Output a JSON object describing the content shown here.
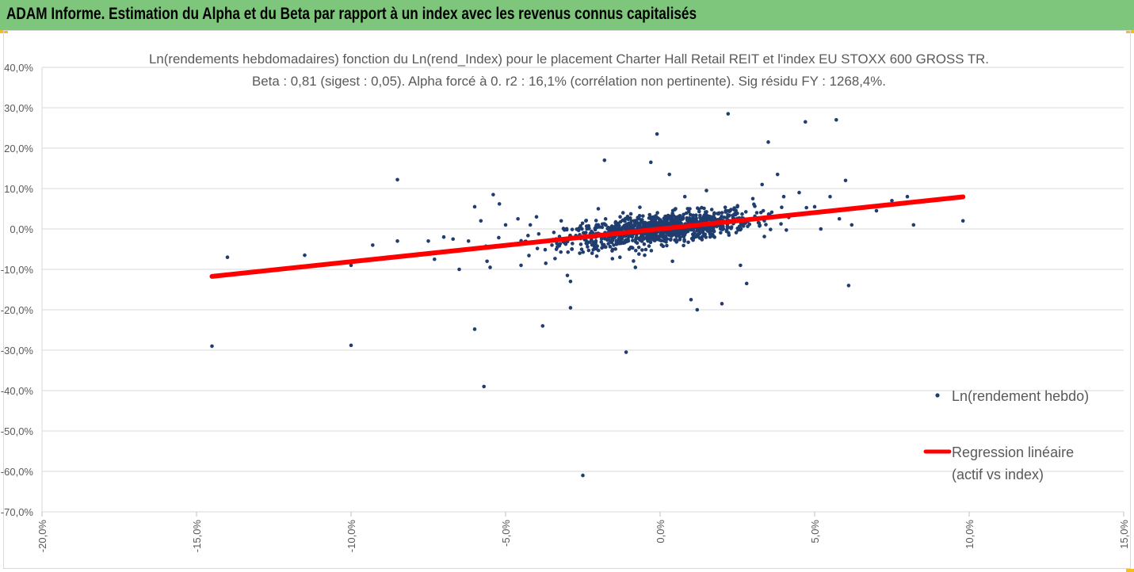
{
  "banner": {
    "title": "ADAM Informe. Estimation du Alpha et du Beta par rapport à un index avec les revenus connus capitalisés",
    "color": "#7dc67b",
    "corner_color": "#f2c01e"
  },
  "chart_data": {
    "type": "scatter",
    "title_line1": "Ln(rendements hebdomadaires) fonction du Ln(rend_Index) pour le placement Charter Hall Retail REIT et l'index EU STOXX 600 GROSS TR.",
    "title_line2": "Beta : 0,81 (sigest : 0,05). Alpha forcé à 0. r2 : 16,1% (corrélation non pertinente). Sig résidu FY : 1268,4%.",
    "x_ticks": [
      "-20,0%",
      "-15,0%",
      "-10,0%",
      "-5,0%",
      "0,0%",
      "5,0%",
      "10,0%",
      "15,0%"
    ],
    "y_ticks": [
      "40,0%",
      "30,0%",
      "20,0%",
      "10,0%",
      "0,0%",
      "-10,0%",
      "-20,0%",
      "-30,0%",
      "-40,0%",
      "-50,0%",
      "-60,0%",
      "-70,0%"
    ],
    "xlim": [
      -20,
      15
    ],
    "ylim": [
      -70,
      40
    ],
    "grid": "horizontal",
    "legend_position": "right",
    "legend": [
      {
        "label": "Ln(rendement hebdo)",
        "kind": "marker"
      },
      {
        "label_line1": "Regression linéaire",
        "label_line2": "(actif vs index)",
        "kind": "line"
      }
    ],
    "series": [
      {
        "kind": "points",
        "color": "#1f3d6e",
        "points": [
          [
            -14.5,
            -29
          ],
          [
            -14,
            -7
          ],
          [
            -11.5,
            -6.5
          ],
          [
            -10,
            -28.8
          ],
          [
            -10,
            -9
          ],
          [
            -9.3,
            -4
          ],
          [
            -8.5,
            12.2
          ],
          [
            -8.5,
            -3
          ],
          [
            -7.5,
            -3
          ],
          [
            -7.3,
            -7.5
          ],
          [
            -7,
            -2
          ],
          [
            -6.7,
            -2.5
          ],
          [
            -6.5,
            -10
          ],
          [
            -6.2,
            -3
          ],
          [
            -6,
            5.5
          ],
          [
            -6,
            -24.8
          ],
          [
            -5.8,
            2
          ],
          [
            -5.7,
            -39
          ],
          [
            -5.6,
            -8
          ],
          [
            -5.5,
            -9.5
          ],
          [
            -5.4,
            8.5
          ],
          [
            -5.2,
            6.2
          ],
          [
            -5,
            1
          ],
          [
            -4.8,
            -4
          ],
          [
            -4.6,
            2.5
          ],
          [
            -4.5,
            -9
          ],
          [
            -4.2,
            1
          ],
          [
            -4,
            3
          ],
          [
            -3.8,
            -24
          ],
          [
            -3.7,
            -8.5
          ],
          [
            -3.5,
            -4
          ],
          [
            -3.2,
            2
          ],
          [
            -3,
            -11.5
          ],
          [
            -2.9,
            -13
          ],
          [
            -2.9,
            -19.5
          ],
          [
            -2.6,
            -6
          ],
          [
            -2.5,
            -61
          ],
          [
            -2.4,
            2
          ],
          [
            -2.2,
            -6
          ],
          [
            -2,
            5
          ],
          [
            -1.8,
            17
          ],
          [
            -1.5,
            -4
          ],
          [
            -1.3,
            -7
          ],
          [
            -1.2,
            4
          ],
          [
            -1.1,
            -30.5
          ],
          [
            -1,
            -5
          ],
          [
            -0.8,
            -9.5
          ],
          [
            -0.5,
            -6.5
          ],
          [
            -0.3,
            16.5
          ],
          [
            -0.1,
            23.5
          ],
          [
            0.3,
            13.5
          ],
          [
            0.4,
            -8
          ],
          [
            0.5,
            5
          ],
          [
            0.8,
            8
          ],
          [
            1,
            -17.5
          ],
          [
            1.2,
            -20
          ],
          [
            1.5,
            9.5
          ],
          [
            2,
            -18.5
          ],
          [
            2.2,
            28.5
          ],
          [
            2.5,
            5.5
          ],
          [
            2.6,
            -9
          ],
          [
            2.8,
            -13.5
          ],
          [
            3,
            7.5
          ],
          [
            3.3,
            11
          ],
          [
            3.5,
            21.5
          ],
          [
            3.8,
            13.5
          ],
          [
            4,
            8
          ],
          [
            4.5,
            9
          ],
          [
            4.7,
            26.5
          ],
          [
            5,
            5.5
          ],
          [
            5.2,
            0
          ],
          [
            5.5,
            8
          ],
          [
            5.7,
            27
          ],
          [
            5.8,
            2.5
          ],
          [
            6,
            12
          ],
          [
            6.1,
            -14
          ],
          [
            6.2,
            1
          ],
          [
            7,
            4.5
          ],
          [
            7.5,
            7
          ],
          [
            8,
            8
          ],
          [
            8.2,
            1
          ],
          [
            9.8,
            2
          ]
        ]
      },
      {
        "kind": "regression_line",
        "color": "#ff0000",
        "slope": 0.81,
        "intercept": 0,
        "x_range": [
          -14.5,
          9.8
        ]
      }
    ]
  }
}
